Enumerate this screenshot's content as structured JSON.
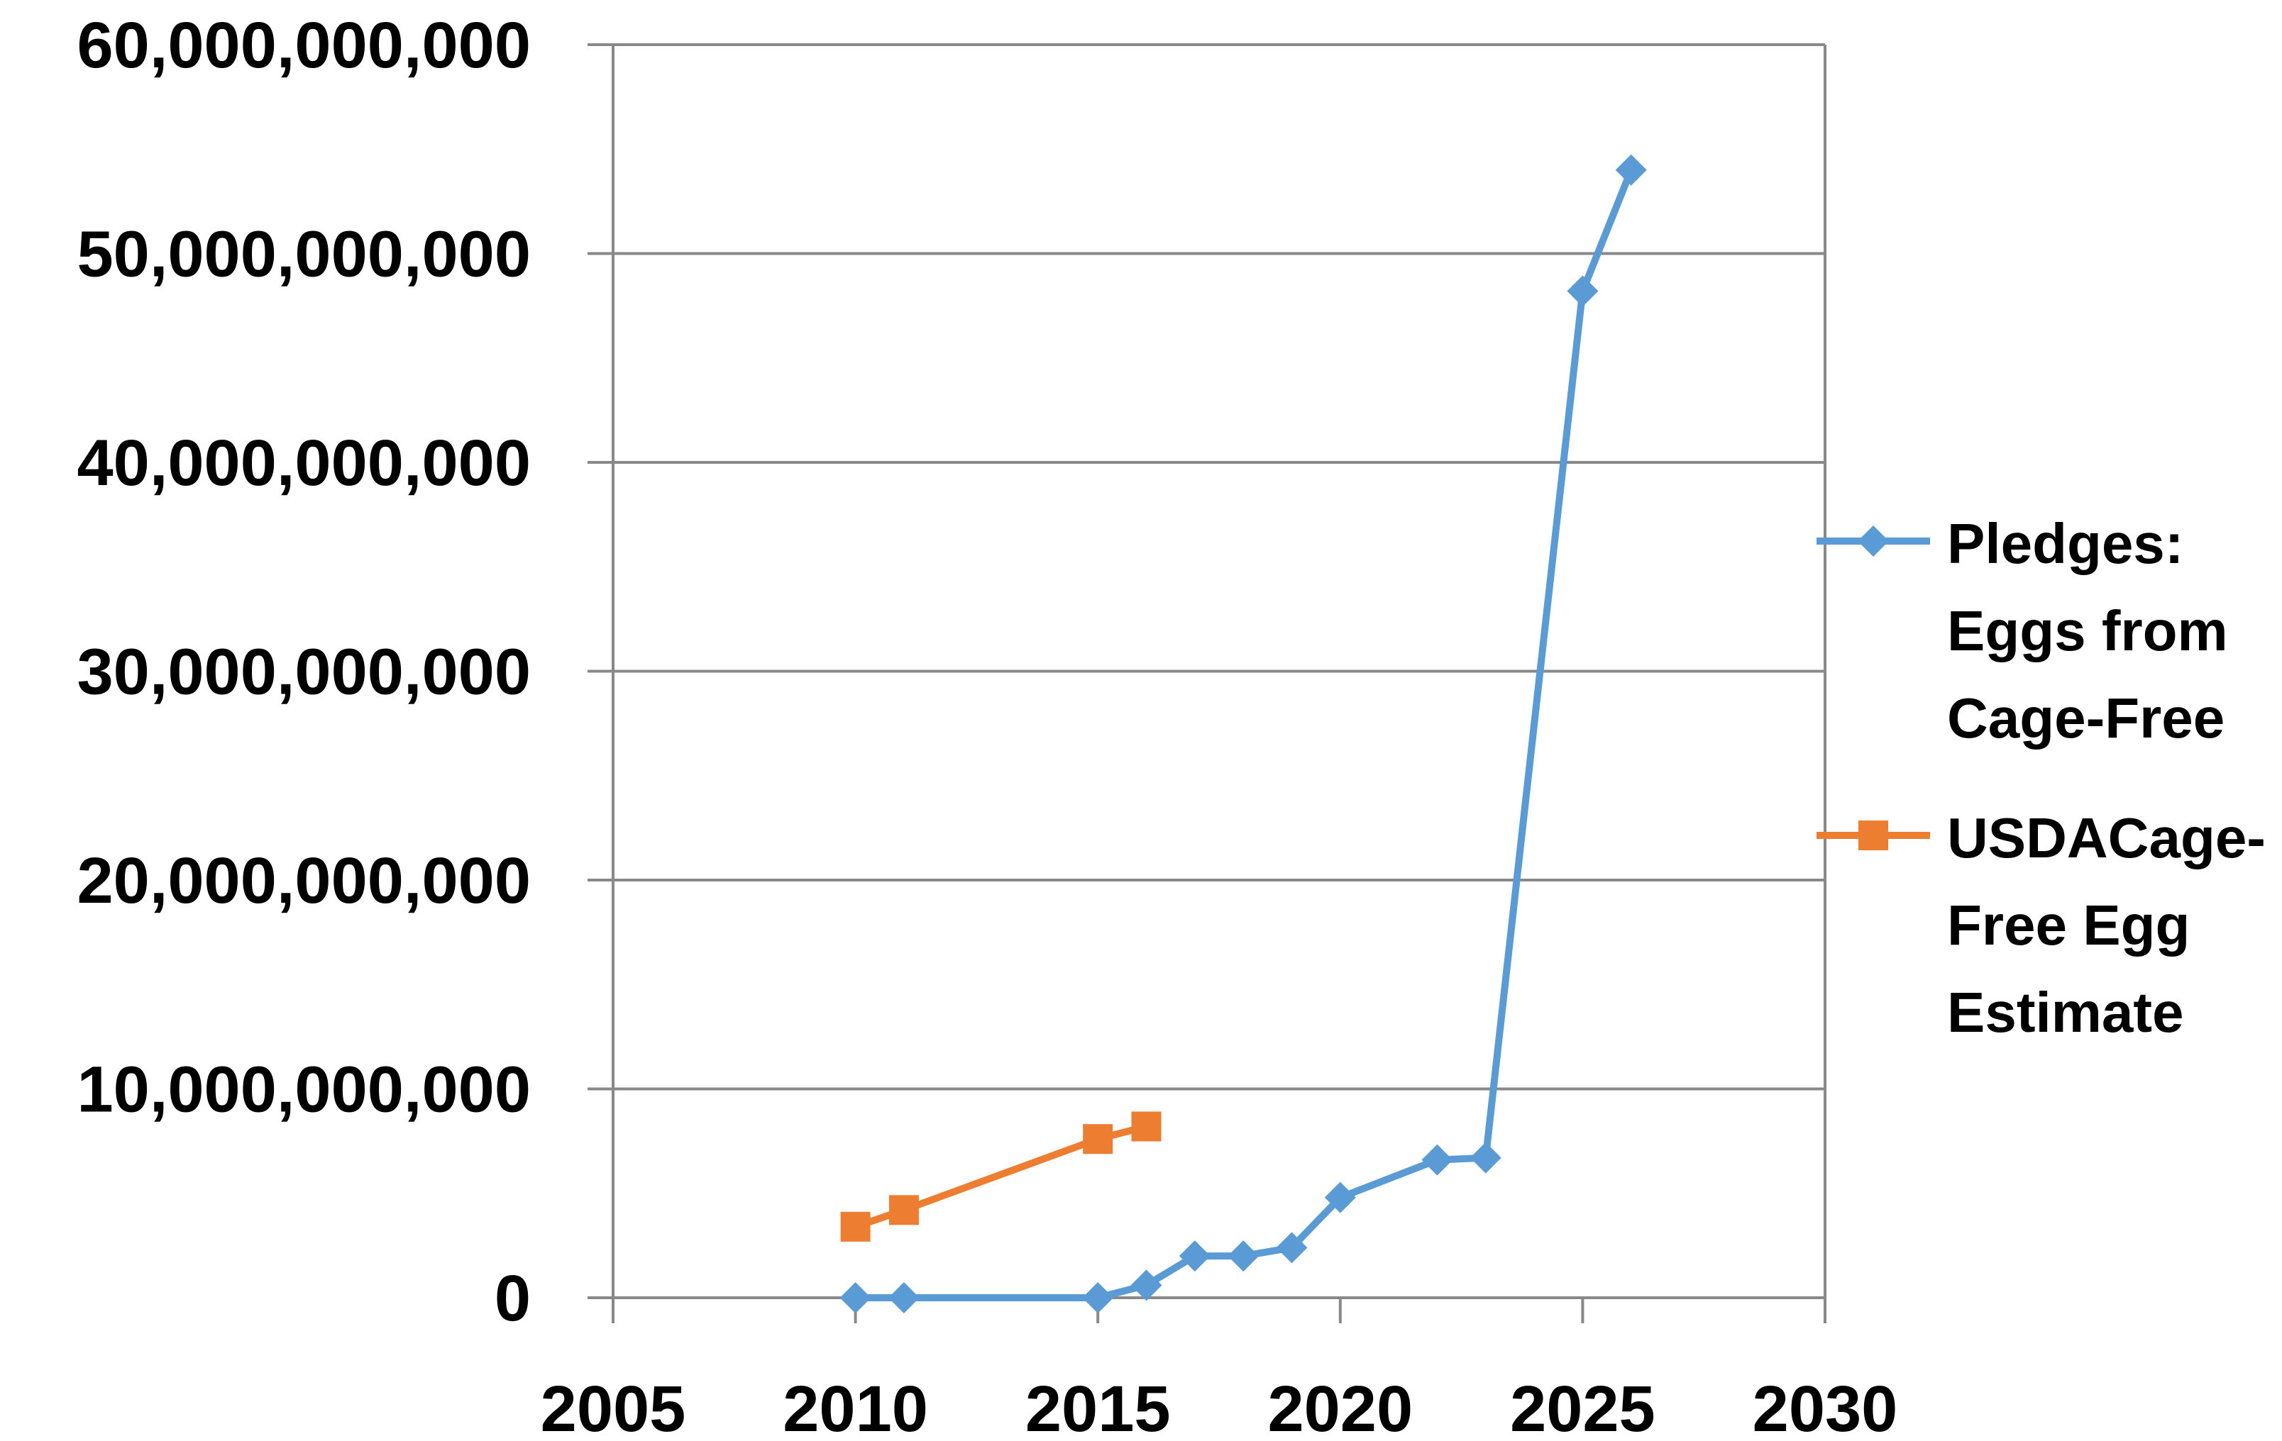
{
  "chart_data": {
    "type": "scatter",
    "title": "",
    "xlabel": "",
    "ylabel": "",
    "xlim": [
      2005,
      2030
    ],
    "ylim": [
      0,
      60000000000
    ],
    "x_ticks": [
      "2005",
      "2010",
      "2015",
      "2020",
      "2025",
      "2030"
    ],
    "y_ticks": [
      "0",
      "10,000,000,000",
      "20,000,000,000",
      "30,000,000,000",
      "40,000,000,000",
      "50,000,000,000",
      "60,000,000,000"
    ],
    "grid": "horizontal",
    "legend_position": "right",
    "series": [
      {
        "name": "Pledges: Eggs from Cage-Free",
        "legend_lines": [
          "Pledges:",
          "Eggs from",
          "Cage-Free"
        ],
        "color": "#5B9BD5",
        "marker": "diamond",
        "x": [
          2010,
          2011,
          2015,
          2016,
          2017,
          2018,
          2019,
          2020,
          2022,
          2023,
          2025,
          2026
        ],
        "y": [
          0,
          0,
          0,
          600000000,
          2000000000,
          2000000000,
          2400000000,
          4800000000,
          6600000000,
          6700000000,
          48200000000,
          54000000000
        ]
      },
      {
        "name": "USDACage-Free Egg Estimate",
        "legend_lines": [
          "USDACage-",
          "Free Egg",
          "Estimate"
        ],
        "color": "#ED7D31",
        "marker": "square",
        "x": [
          2010,
          2011,
          2015,
          2016
        ],
        "y": [
          3400000000,
          4200000000,
          7600000000,
          8200000000
        ]
      }
    ]
  }
}
